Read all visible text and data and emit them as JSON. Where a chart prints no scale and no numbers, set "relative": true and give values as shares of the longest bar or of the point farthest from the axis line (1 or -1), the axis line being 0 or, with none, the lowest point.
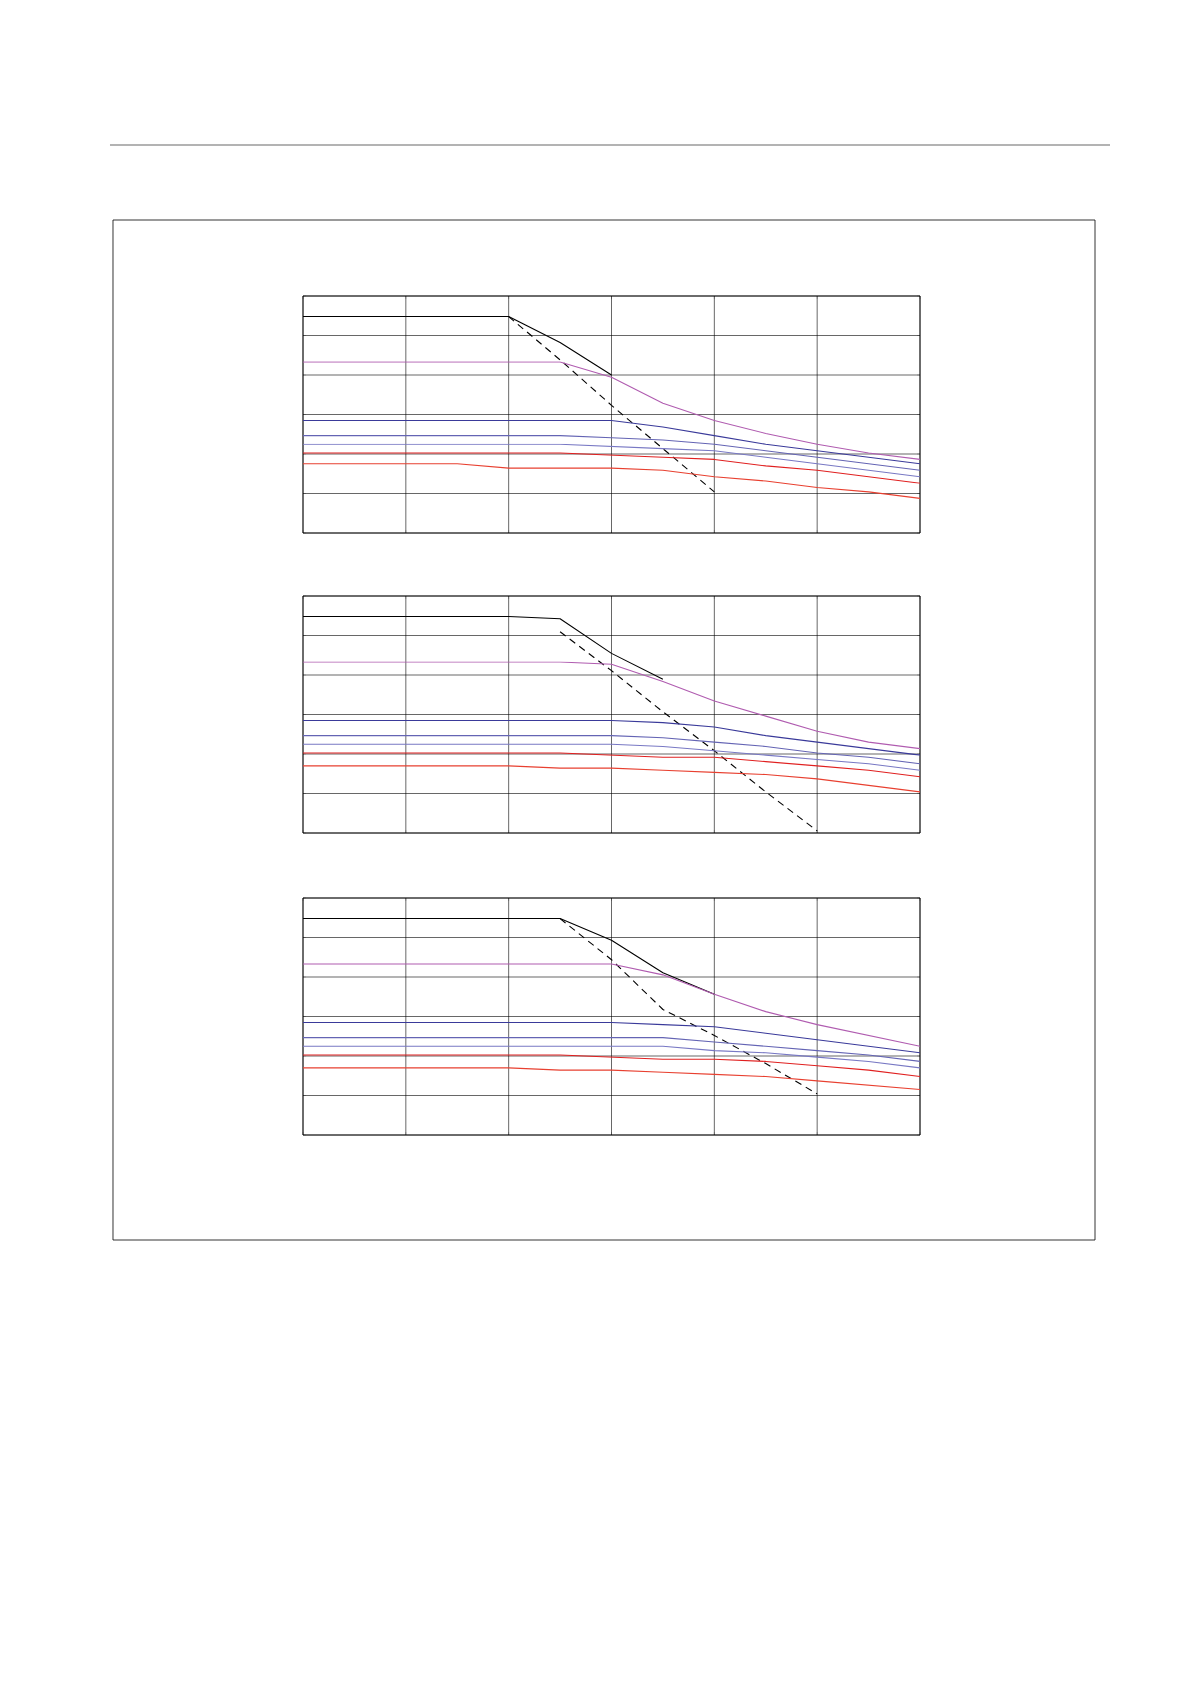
{
  "chart_data": [
    {
      "type": "line",
      "relative": true,
      "grid": true,
      "tick_labels": false,
      "categories": [
        null,
        null,
        null,
        null,
        null,
        null,
        null,
        null,
        null,
        null,
        null,
        null,
        null
      ],
      "series": [
        {
          "color": "#000000",
          "values": [
            1,
            1,
            1,
            1,
            1,
            0.88,
            0.73,
            null,
            null,
            null,
            null,
            null,
            null
          ]
        },
        {
          "color": "#000000",
          "line_style": "dashed",
          "values": [
            null,
            null,
            null,
            null,
            1,
            0.8,
            0.59,
            0.39,
            0.19,
            null,
            null,
            null,
            null
          ]
        },
        {
          "color": "#b05cb0",
          "values": [
            0.79,
            0.79,
            0.79,
            0.79,
            0.79,
            0.79,
            0.72,
            0.6,
            0.52,
            0.46,
            0.41,
            0.37,
            0.34
          ]
        },
        {
          "color": "#3a3a9a",
          "values": [
            0.52,
            0.52,
            0.52,
            0.52,
            0.52,
            0.52,
            0.52,
            0.49,
            0.45,
            0.41,
            0.38,
            0.35,
            0.32
          ]
        },
        {
          "color": "#6464b4",
          "values": [
            0.45,
            0.45,
            0.45,
            0.45,
            0.45,
            0.45,
            0.44,
            0.43,
            0.41,
            0.38,
            0.35,
            0.32,
            0.29
          ]
        },
        {
          "color": "#7878c4",
          "values": [
            0.41,
            0.41,
            0.41,
            0.41,
            0.41,
            0.41,
            0.4,
            0.39,
            0.38,
            0.35,
            0.32,
            0.29,
            0.26
          ]
        },
        {
          "color": "#e02020",
          "values": [
            0.37,
            0.37,
            0.37,
            0.37,
            0.37,
            0.37,
            0.36,
            0.35,
            0.34,
            0.31,
            0.29,
            0.26,
            0.23
          ]
        },
        {
          "color": "#e84030",
          "values": [
            0.32,
            0.32,
            0.32,
            0.32,
            0.3,
            0.3,
            0.3,
            0.29,
            0.26,
            0.24,
            0.21,
            0.19,
            0.16
          ]
        }
      ]
    },
    {
      "type": "line",
      "relative": true,
      "grid": true,
      "tick_labels": false,
      "categories": [
        null,
        null,
        null,
        null,
        null,
        null,
        null,
        null,
        null,
        null,
        null,
        null,
        null
      ],
      "series": [
        {
          "color": "#000000",
          "values": [
            1,
            1,
            1,
            1,
            1,
            0.99,
            0.83,
            0.71,
            null,
            null,
            null,
            null,
            null
          ]
        },
        {
          "color": "#000000",
          "line_style": "dashed",
          "values": [
            null,
            null,
            null,
            null,
            null,
            0.93,
            0.75,
            0.56,
            0.38,
            0.19,
            0.01,
            null,
            null
          ]
        },
        {
          "color": "#b05cb0",
          "values": [
            0.79,
            0.79,
            0.79,
            0.79,
            0.79,
            0.79,
            0.78,
            0.7,
            0.61,
            0.54,
            0.47,
            0.42,
            0.39
          ]
        },
        {
          "color": "#3a3a9a",
          "values": [
            0.52,
            0.52,
            0.52,
            0.52,
            0.52,
            0.52,
            0.52,
            0.51,
            0.49,
            0.45,
            0.42,
            0.39,
            0.36
          ]
        },
        {
          "color": "#6464b4",
          "values": [
            0.45,
            0.45,
            0.45,
            0.45,
            0.45,
            0.45,
            0.45,
            0.44,
            0.42,
            0.4,
            0.37,
            0.35,
            0.32
          ]
        },
        {
          "color": "#7878c4",
          "values": [
            0.41,
            0.41,
            0.41,
            0.41,
            0.41,
            0.41,
            0.41,
            0.4,
            0.38,
            0.36,
            0.34,
            0.32,
            0.29
          ]
        },
        {
          "color": "#e02020",
          "values": [
            0.37,
            0.37,
            0.37,
            0.37,
            0.37,
            0.37,
            0.36,
            0.35,
            0.35,
            0.33,
            0.31,
            0.29,
            0.26
          ]
        },
        {
          "color": "#e84030",
          "values": [
            0.31,
            0.31,
            0.31,
            0.31,
            0.31,
            0.3,
            0.3,
            0.29,
            0.28,
            0.27,
            0.25,
            0.22,
            0.19
          ]
        }
      ]
    },
    {
      "type": "line",
      "relative": true,
      "grid": true,
      "tick_labels": false,
      "categories": [
        null,
        null,
        null,
        null,
        null,
        null,
        null,
        null,
        null,
        null,
        null,
        null,
        null
      ],
      "series": [
        {
          "color": "#000000",
          "values": [
            1,
            1,
            1,
            1,
            1,
            1,
            0.9,
            0.75,
            0.65,
            null,
            null,
            null,
            null
          ]
        },
        {
          "color": "#000000",
          "line_style": "dashed",
          "values": [
            null,
            null,
            null,
            null,
            null,
            1,
            0.81,
            0.58,
            0.46,
            0.33,
            0.19,
            null,
            null
          ]
        },
        {
          "color": "#b05cb0",
          "values": [
            0.79,
            0.79,
            0.79,
            0.79,
            0.79,
            0.79,
            0.79,
            0.74,
            0.65,
            0.57,
            0.51,
            0.46,
            0.41
          ]
        },
        {
          "color": "#3a3a9a",
          "values": [
            0.52,
            0.52,
            0.52,
            0.52,
            0.52,
            0.52,
            0.52,
            0.51,
            0.5,
            0.47,
            0.44,
            0.41,
            0.38
          ]
        },
        {
          "color": "#6464b4",
          "values": [
            0.45,
            0.45,
            0.45,
            0.45,
            0.45,
            0.45,
            0.45,
            0.45,
            0.43,
            0.41,
            0.39,
            0.37,
            0.34
          ]
        },
        {
          "color": "#7878c4",
          "values": [
            0.41,
            0.41,
            0.41,
            0.41,
            0.41,
            0.41,
            0.41,
            0.41,
            0.39,
            0.38,
            0.36,
            0.34,
            0.31
          ]
        },
        {
          "color": "#e02020",
          "values": [
            0.37,
            0.37,
            0.37,
            0.37,
            0.37,
            0.37,
            0.36,
            0.35,
            0.35,
            0.34,
            0.32,
            0.3,
            0.27
          ]
        },
        {
          "color": "#e84030",
          "values": [
            0.31,
            0.31,
            0.31,
            0.31,
            0.31,
            0.3,
            0.3,
            0.29,
            0.28,
            0.27,
            0.25,
            0.23,
            0.21
          ]
        }
      ]
    }
  ]
}
